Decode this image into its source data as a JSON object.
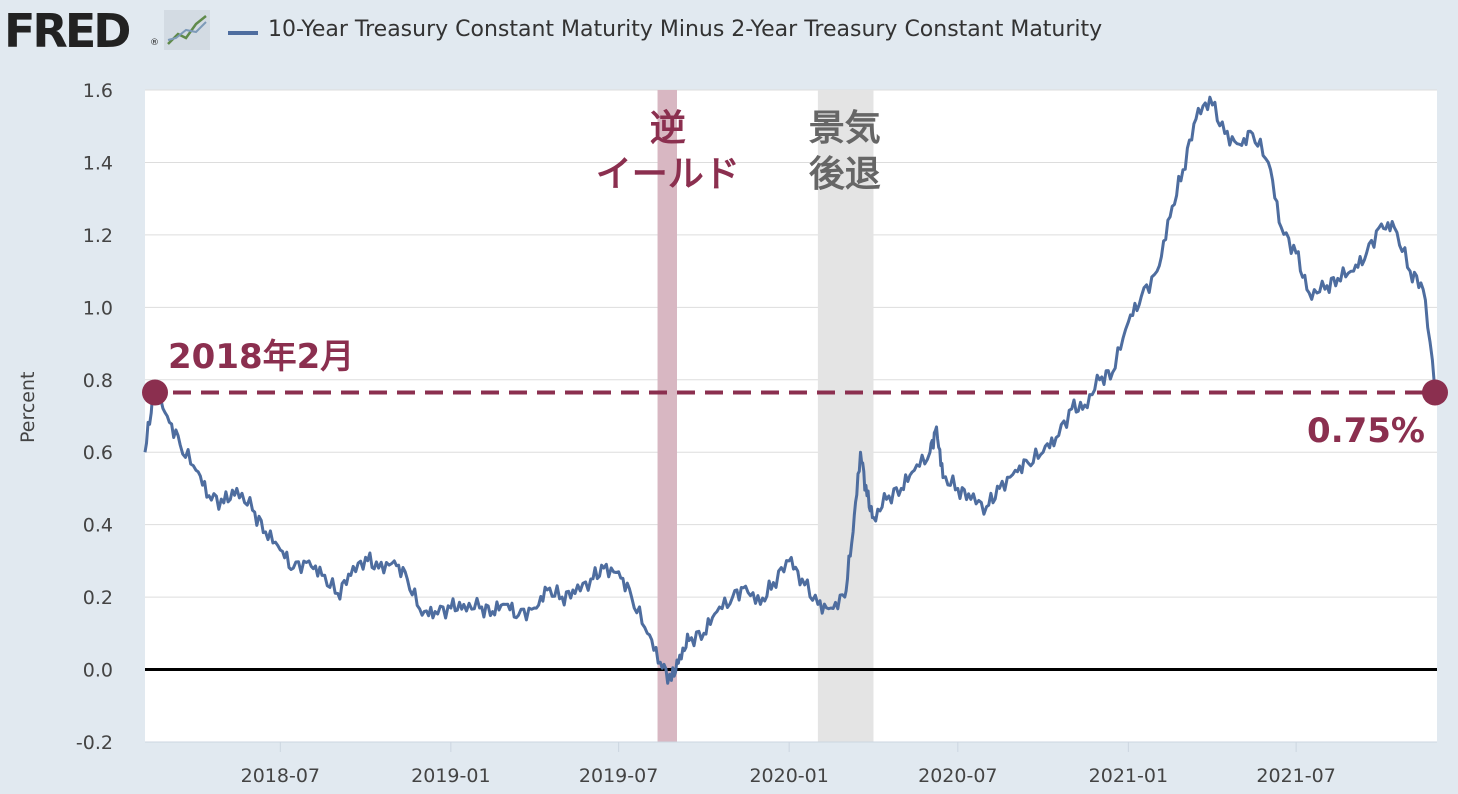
{
  "header": {
    "logo_text": "FRED",
    "logo_reg": "®",
    "series_title": "10-Year Treasury Constant Maturity Minus 2-Year Treasury Constant Maturity"
  },
  "colors": {
    "background": "#e1e9f0",
    "plot_bg": "#ffffff",
    "series": "#4e6d9f",
    "annotation": "#8b2f4f",
    "inversion_band": "#d8b7c2",
    "recession_band": "#e4e4e4",
    "zero_line": "#000000"
  },
  "chart_data": {
    "type": "line",
    "title": "10-Year Treasury Constant Maturity Minus 2-Year Treasury Constant Maturity",
    "ylabel": "Percent",
    "xlabel": "",
    "ylim": [
      -0.2,
      1.6
    ],
    "yticks": [
      -0.2,
      0.0,
      0.2,
      0.4,
      0.6,
      0.8,
      1.0,
      1.2,
      1.4,
      1.6
    ],
    "ytick_labels": [
      "-0.2",
      "0.0",
      "0.2",
      "0.4",
      "0.6",
      "0.8",
      "1.0",
      "1.2",
      "1.4",
      "1.6"
    ],
    "xlim": [
      "2018-02-05",
      "2021-11-30"
    ],
    "xticks": [
      "2018-07-01",
      "2019-01-01",
      "2019-07-01",
      "2020-01-01",
      "2020-07-01",
      "2021-01-01",
      "2021-07-01"
    ],
    "xtick_labels": [
      "2018-07",
      "2019-01",
      "2019-07",
      "2020-01",
      "2020-07",
      "2021-01",
      "2021-07"
    ],
    "grid": true,
    "legend": "top",
    "series": [
      {
        "name": "10-Year Treasury Constant Maturity Minus 2-Year Treasury Constant Maturity",
        "x": [
          "2018-02-05",
          "2018-02-15",
          "2018-03-01",
          "2018-03-15",
          "2018-04-01",
          "2018-04-15",
          "2018-05-01",
          "2018-05-15",
          "2018-06-01",
          "2018-06-15",
          "2018-07-01",
          "2018-07-15",
          "2018-08-01",
          "2018-08-15",
          "2018-09-01",
          "2018-09-15",
          "2018-10-01",
          "2018-10-15",
          "2018-11-01",
          "2018-11-15",
          "2018-12-01",
          "2018-12-15",
          "2019-01-01",
          "2019-01-15",
          "2019-02-01",
          "2019-02-15",
          "2019-03-01",
          "2019-03-15",
          "2019-04-01",
          "2019-04-15",
          "2019-05-01",
          "2019-05-15",
          "2019-06-01",
          "2019-06-15",
          "2019-07-01",
          "2019-07-15",
          "2019-08-01",
          "2019-08-15",
          "2019-08-27",
          "2019-09-05",
          "2019-09-15",
          "2019-10-01",
          "2019-10-15",
          "2019-11-01",
          "2019-11-15",
          "2019-12-01",
          "2019-12-15",
          "2020-01-01",
          "2020-01-15",
          "2020-02-01",
          "2020-02-15",
          "2020-03-01",
          "2020-03-10",
          "2020-03-18",
          "2020-03-25",
          "2020-04-01",
          "2020-04-15",
          "2020-05-01",
          "2020-05-15",
          "2020-06-01",
          "2020-06-08",
          "2020-06-15",
          "2020-07-01",
          "2020-07-15",
          "2020-08-01",
          "2020-08-15",
          "2020-09-01",
          "2020-09-15",
          "2020-10-01",
          "2020-10-15",
          "2020-11-01",
          "2020-11-15",
          "2020-12-01",
          "2020-12-15",
          "2021-01-01",
          "2021-01-15",
          "2021-02-01",
          "2021-02-15",
          "2021-03-01",
          "2021-03-15",
          "2021-03-30",
          "2021-04-15",
          "2021-05-01",
          "2021-05-15",
          "2021-06-01",
          "2021-06-15",
          "2021-07-01",
          "2021-07-15",
          "2021-08-01",
          "2021-08-15",
          "2021-09-01",
          "2021-09-15",
          "2021-10-01",
          "2021-10-15",
          "2021-11-01",
          "2021-11-15",
          "2021-11-30"
        ],
        "values": [
          0.6,
          0.78,
          0.7,
          0.62,
          0.55,
          0.48,
          0.46,
          0.5,
          0.44,
          0.38,
          0.33,
          0.28,
          0.3,
          0.26,
          0.21,
          0.26,
          0.31,
          0.28,
          0.3,
          0.25,
          0.15,
          0.16,
          0.17,
          0.18,
          0.17,
          0.16,
          0.18,
          0.15,
          0.17,
          0.22,
          0.2,
          0.21,
          0.25,
          0.28,
          0.27,
          0.2,
          0.1,
          0.02,
          -0.03,
          0.04,
          0.08,
          0.1,
          0.16,
          0.2,
          0.23,
          0.18,
          0.24,
          0.3,
          0.25,
          0.18,
          0.17,
          0.2,
          0.38,
          0.6,
          0.48,
          0.42,
          0.47,
          0.5,
          0.55,
          0.6,
          0.67,
          0.53,
          0.5,
          0.47,
          0.45,
          0.5,
          0.55,
          0.57,
          0.6,
          0.64,
          0.72,
          0.73,
          0.8,
          0.82,
          0.96,
          1.03,
          1.1,
          1.25,
          1.38,
          1.52,
          1.58,
          1.48,
          1.45,
          1.48,
          1.4,
          1.22,
          1.15,
          1.04,
          1.05,
          1.08,
          1.1,
          1.15,
          1.23,
          1.22,
          1.1,
          1.05,
          0.75
        ]
      }
    ],
    "bands": [
      {
        "label": "逆\nイールド",
        "from": "2019-08-12",
        "to": "2019-09-02"
      },
      {
        "label": "景気\n後退",
        "from": "2020-02-01",
        "to": "2020-04-01"
      }
    ],
    "reference_line": {
      "y": 0.765,
      "from": "2018-02-05",
      "to": "2021-11-30",
      "style": "dashed"
    },
    "annotations": [
      {
        "text": "逆",
        "x": "2019-08-23"
      },
      {
        "text": "イールド",
        "x": "2019-08-23"
      },
      {
        "text": "景気",
        "x": "2020-03-01"
      },
      {
        "text": "後退",
        "x": "2020-03-01"
      },
      {
        "text": "2018年2月",
        "x": "2018-02-05",
        "y": 0.765
      },
      {
        "text": "0.75%",
        "x": "2021-11-30",
        "y": 0.75
      }
    ]
  }
}
